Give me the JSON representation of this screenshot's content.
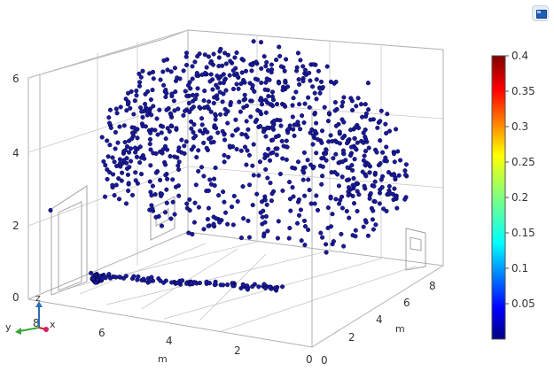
{
  "toolbar": {
    "icon": "app-logo-icon"
  },
  "chart_data": {
    "type": "scatter",
    "dimensions": 3,
    "title": "",
    "axes": {
      "x": {
        "label": "m",
        "ticks": [
          "0",
          "2",
          "4",
          "6",
          "8"
        ],
        "range": [
          0,
          8
        ]
      },
      "y": {
        "label": "m",
        "ticks": [
          "0",
          "2",
          "4",
          "6",
          "8"
        ],
        "range": [
          0,
          9
        ]
      },
      "z": {
        "label": "",
        "ticks": [
          "0",
          "2",
          "4",
          "6"
        ],
        "range": [
          0,
          6.5
        ]
      }
    },
    "triad": {
      "z": "z",
      "x": "x",
      "y": "y"
    },
    "point_color": "#1a1a9e",
    "point_edge_color": "#000033",
    "point_count_approx": 1100,
    "description_of_distribution": [
      "dome-shaped cloud of particles spanning x 0-8, y 0-9, z 1.5-6.5",
      "trail of particles along the floor from near (7,1,0) to (2,6,0)"
    ],
    "colorbar": {
      "min": 0,
      "max": 0.4,
      "ticks": [
        "0.4",
        "0.35",
        "0.3",
        "0.25",
        "0.2",
        "0.15",
        "0.1",
        "0.05"
      ],
      "colors": [
        "#00007f",
        "#0000ff",
        "#007fff",
        "#00ffff",
        "#7fff7f",
        "#ffff00",
        "#ff7f00",
        "#ff0000",
        "#7f0000"
      ]
    },
    "grid": true
  }
}
